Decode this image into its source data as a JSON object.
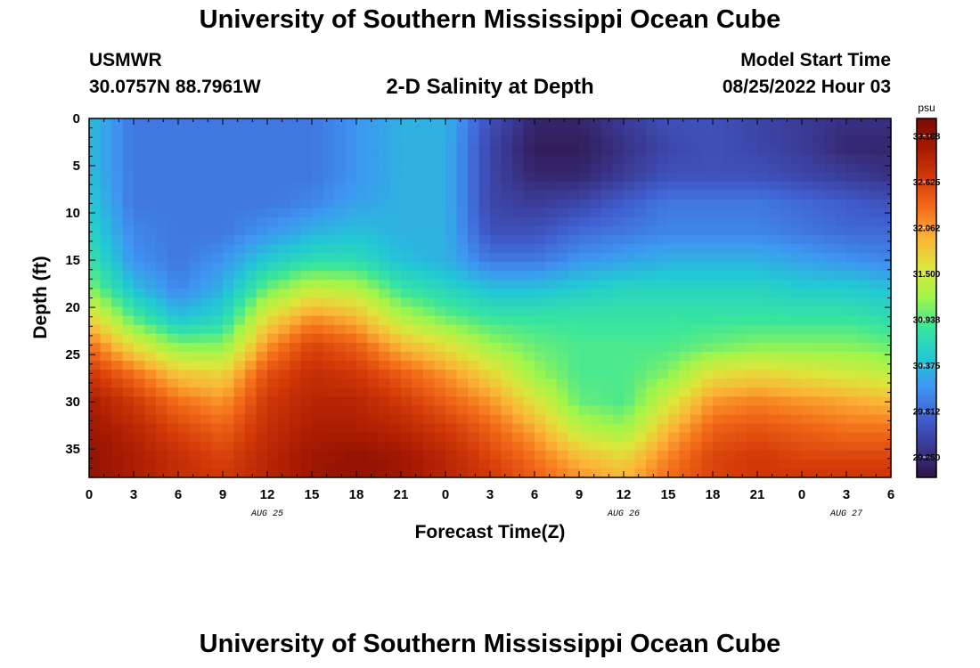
{
  "header": {
    "title": "University of Southern Mississippi Ocean Cube",
    "station_id": "USMWR",
    "station_coords": "30.0757N  88.7961W",
    "subtitle": "2-D Salinity at Depth",
    "model_label": "Model Start Time",
    "model_time": "08/25/2022 Hour 03"
  },
  "footer": {
    "title": "University of Southern Mississippi Ocean Cube"
  },
  "chart_data": {
    "type": "heatmap",
    "title": "2-D Salinity at Depth",
    "xlabel": "Forecast Time(Z)",
    "ylabel": "Depth (ft)",
    "x_range_hours": [
      0,
      54
    ],
    "y_range_ft": [
      0,
      38
    ],
    "x_ticks": [
      {
        "hour": 0,
        "label": "0"
      },
      {
        "hour": 3,
        "label": "3"
      },
      {
        "hour": 6,
        "label": "6"
      },
      {
        "hour": 9,
        "label": "9"
      },
      {
        "hour": 12,
        "label": "12"
      },
      {
        "hour": 15,
        "label": "15"
      },
      {
        "hour": 18,
        "label": "18"
      },
      {
        "hour": 21,
        "label": "21"
      },
      {
        "hour": 24,
        "label": "0"
      },
      {
        "hour": 27,
        "label": "3"
      },
      {
        "hour": 30,
        "label": "6"
      },
      {
        "hour": 33,
        "label": "9"
      },
      {
        "hour": 36,
        "label": "12"
      },
      {
        "hour": 39,
        "label": "15"
      },
      {
        "hour": 42,
        "label": "18"
      },
      {
        "hour": 45,
        "label": "21"
      },
      {
        "hour": 48,
        "label": "0"
      },
      {
        "hour": 51,
        "label": "3"
      },
      {
        "hour": 54,
        "label": "6"
      }
    ],
    "date_labels": [
      {
        "hour": 12,
        "label": "AUG 25"
      },
      {
        "hour": 36,
        "label": "AUG 26"
      },
      {
        "hour": 51,
        "label": "AUG 27"
      }
    ],
    "y_ticks": [
      0,
      5,
      10,
      15,
      20,
      25,
      30,
      35
    ],
    "colorbar": {
      "unit": "psu",
      "min": 29.0,
      "max": 33.4,
      "tick_values": [
        33.188,
        32.625,
        32.062,
        31.5,
        30.938,
        30.375,
        29.812,
        29.25
      ],
      "tick_labels": [
        "33.188",
        "32.625",
        "32.062",
        "31.500",
        "30.938",
        "30.375",
        "29.812",
        "29.250"
      ],
      "colormap": [
        "#2e1245",
        "#3a3891",
        "#4060d1",
        "#3f94f2",
        "#22c9d4",
        "#38e59d",
        "#a0f54a",
        "#dde63b",
        "#fbb436",
        "#f46d1a",
        "#d33a08",
        "#a71a02",
        "#7b0a04"
      ]
    },
    "depths_ft": [
      0,
      3,
      6,
      9,
      12,
      15,
      18,
      21,
      24,
      27,
      30,
      33,
      36,
      38
    ],
    "times_hours": [
      0,
      3,
      6,
      9,
      12,
      15,
      18,
      21,
      24,
      27,
      30,
      33,
      36,
      39,
      42,
      45,
      48,
      51,
      54
    ],
    "salinity_psu": [
      [
        30.4,
        29.9,
        29.9,
        29.9,
        29.9,
        29.9,
        30.1,
        30.3,
        30.3,
        29.6,
        29.2,
        29.2,
        29.4,
        29.6,
        29.6,
        29.5,
        29.4,
        29.3,
        29.3
      ],
      [
        30.4,
        29.9,
        29.9,
        29.9,
        29.9,
        29.9,
        30.1,
        30.3,
        30.3,
        29.5,
        29.1,
        29.1,
        29.3,
        29.5,
        29.6,
        29.5,
        29.4,
        29.2,
        29.2
      ],
      [
        30.4,
        29.9,
        29.9,
        29.9,
        29.9,
        29.9,
        30.1,
        30.3,
        30.3,
        29.5,
        29.2,
        29.2,
        29.4,
        29.6,
        29.6,
        29.6,
        29.5,
        29.4,
        29.3
      ],
      [
        30.5,
        29.9,
        29.9,
        29.9,
        29.9,
        30.0,
        30.2,
        30.3,
        30.3,
        29.5,
        29.4,
        29.5,
        29.7,
        29.9,
        29.9,
        29.9,
        29.8,
        29.7,
        29.6
      ],
      [
        30.6,
        30.0,
        29.9,
        29.9,
        30.1,
        30.3,
        30.4,
        30.3,
        30.3,
        29.6,
        29.6,
        29.8,
        29.9,
        30.0,
        30.0,
        30.0,
        29.9,
        29.8,
        29.8
      ],
      [
        30.8,
        30.1,
        29.9,
        30.1,
        30.5,
        30.7,
        30.7,
        30.4,
        30.3,
        29.9,
        29.9,
        30.1,
        30.2,
        30.3,
        30.3,
        30.3,
        30.2,
        30.1,
        30.0
      ],
      [
        31.1,
        30.4,
        30.0,
        30.3,
        31.0,
        31.4,
        31.3,
        30.8,
        30.6,
        30.4,
        30.4,
        30.5,
        30.6,
        30.6,
        30.6,
        30.6,
        30.5,
        30.5,
        30.4
      ],
      [
        31.7,
        30.9,
        30.4,
        30.6,
        31.6,
        32.1,
        31.9,
        31.3,
        31.0,
        30.8,
        30.8,
        30.8,
        30.8,
        30.8,
        30.8,
        30.8,
        30.8,
        30.8,
        30.7
      ],
      [
        32.3,
        31.6,
        31.1,
        31.1,
        32.1,
        32.6,
        32.4,
        31.9,
        31.6,
        31.2,
        31.0,
        30.9,
        30.9,
        30.9,
        31.0,
        31.1,
        31.1,
        31.1,
        31.0
      ],
      [
        32.7,
        32.3,
        31.8,
        31.7,
        32.5,
        32.8,
        32.7,
        32.4,
        32.1,
        31.7,
        31.2,
        30.9,
        30.9,
        31.1,
        31.6,
        31.7,
        31.6,
        31.5,
        31.4
      ],
      [
        33.0,
        32.7,
        32.3,
        32.1,
        32.7,
        32.9,
        32.9,
        32.7,
        32.4,
        32.1,
        31.6,
        31.0,
        30.9,
        31.5,
        32.1,
        32.2,
        32.1,
        32.0,
        31.9
      ],
      [
        33.1,
        32.9,
        32.6,
        32.4,
        32.8,
        33.0,
        33.0,
        32.9,
        32.7,
        32.4,
        32.0,
        31.4,
        31.2,
        31.9,
        32.4,
        32.5,
        32.4,
        32.3,
        32.3
      ],
      [
        33.2,
        33.0,
        32.8,
        32.6,
        32.9,
        33.1,
        33.2,
        33.1,
        32.9,
        32.6,
        32.3,
        31.9,
        31.7,
        32.2,
        32.6,
        32.7,
        32.6,
        32.6,
        32.6
      ],
      [
        33.2,
        33.0,
        32.8,
        32.7,
        32.9,
        33.1,
        33.2,
        33.1,
        32.9,
        32.7,
        32.4,
        32.1,
        31.9,
        32.3,
        32.6,
        32.7,
        32.7,
        32.7,
        32.7
      ]
    ]
  }
}
